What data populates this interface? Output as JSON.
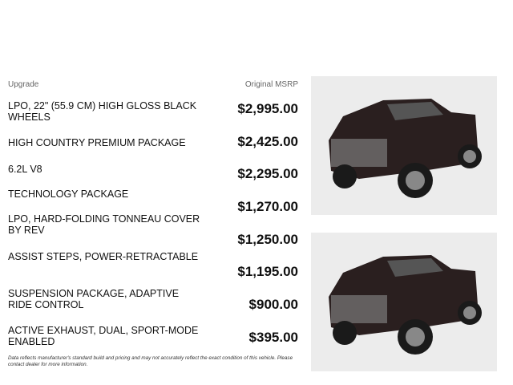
{
  "header": {
    "upgrade_label": "Upgrade",
    "msrp_label": "Original MSRP"
  },
  "upgrades": [
    {
      "name": "LPO, 22\" (55.9 CM) HIGH GLOSS BLACK WHEELS",
      "price": "$2,995.00"
    },
    {
      "name": "HIGH COUNTRY PREMIUM PACKAGE",
      "price": "$2,425.00"
    },
    {
      "name": "6.2L V8",
      "price": "$2,295.00"
    },
    {
      "name": "TECHNOLOGY PACKAGE",
      "price": "$1,270.00"
    },
    {
      "name": "LPO, HARD-FOLDING TONNEAU COVER BY REV",
      "price": "$1,250.00"
    },
    {
      "name": "ASSIST STEPS, POWER-RETRACTABLE",
      "price": "$1,195.00"
    },
    {
      "name": "SUSPENSION PACKAGE, ADAPTIVE RIDE CONTROL",
      "price": "$900.00"
    },
    {
      "name": "ACTIVE EXHAUST, DUAL, SPORT-MODE ENABLED",
      "price": "$395.00"
    }
  ],
  "disclaimer": "Data reflects manufacturer's standard build and pricing and may not accurately reflect the exact condition of this vehicle. Please contact dealer for more information.",
  "colors": {
    "truck": "#2a1f1f",
    "photo_bg": "#ececec"
  }
}
